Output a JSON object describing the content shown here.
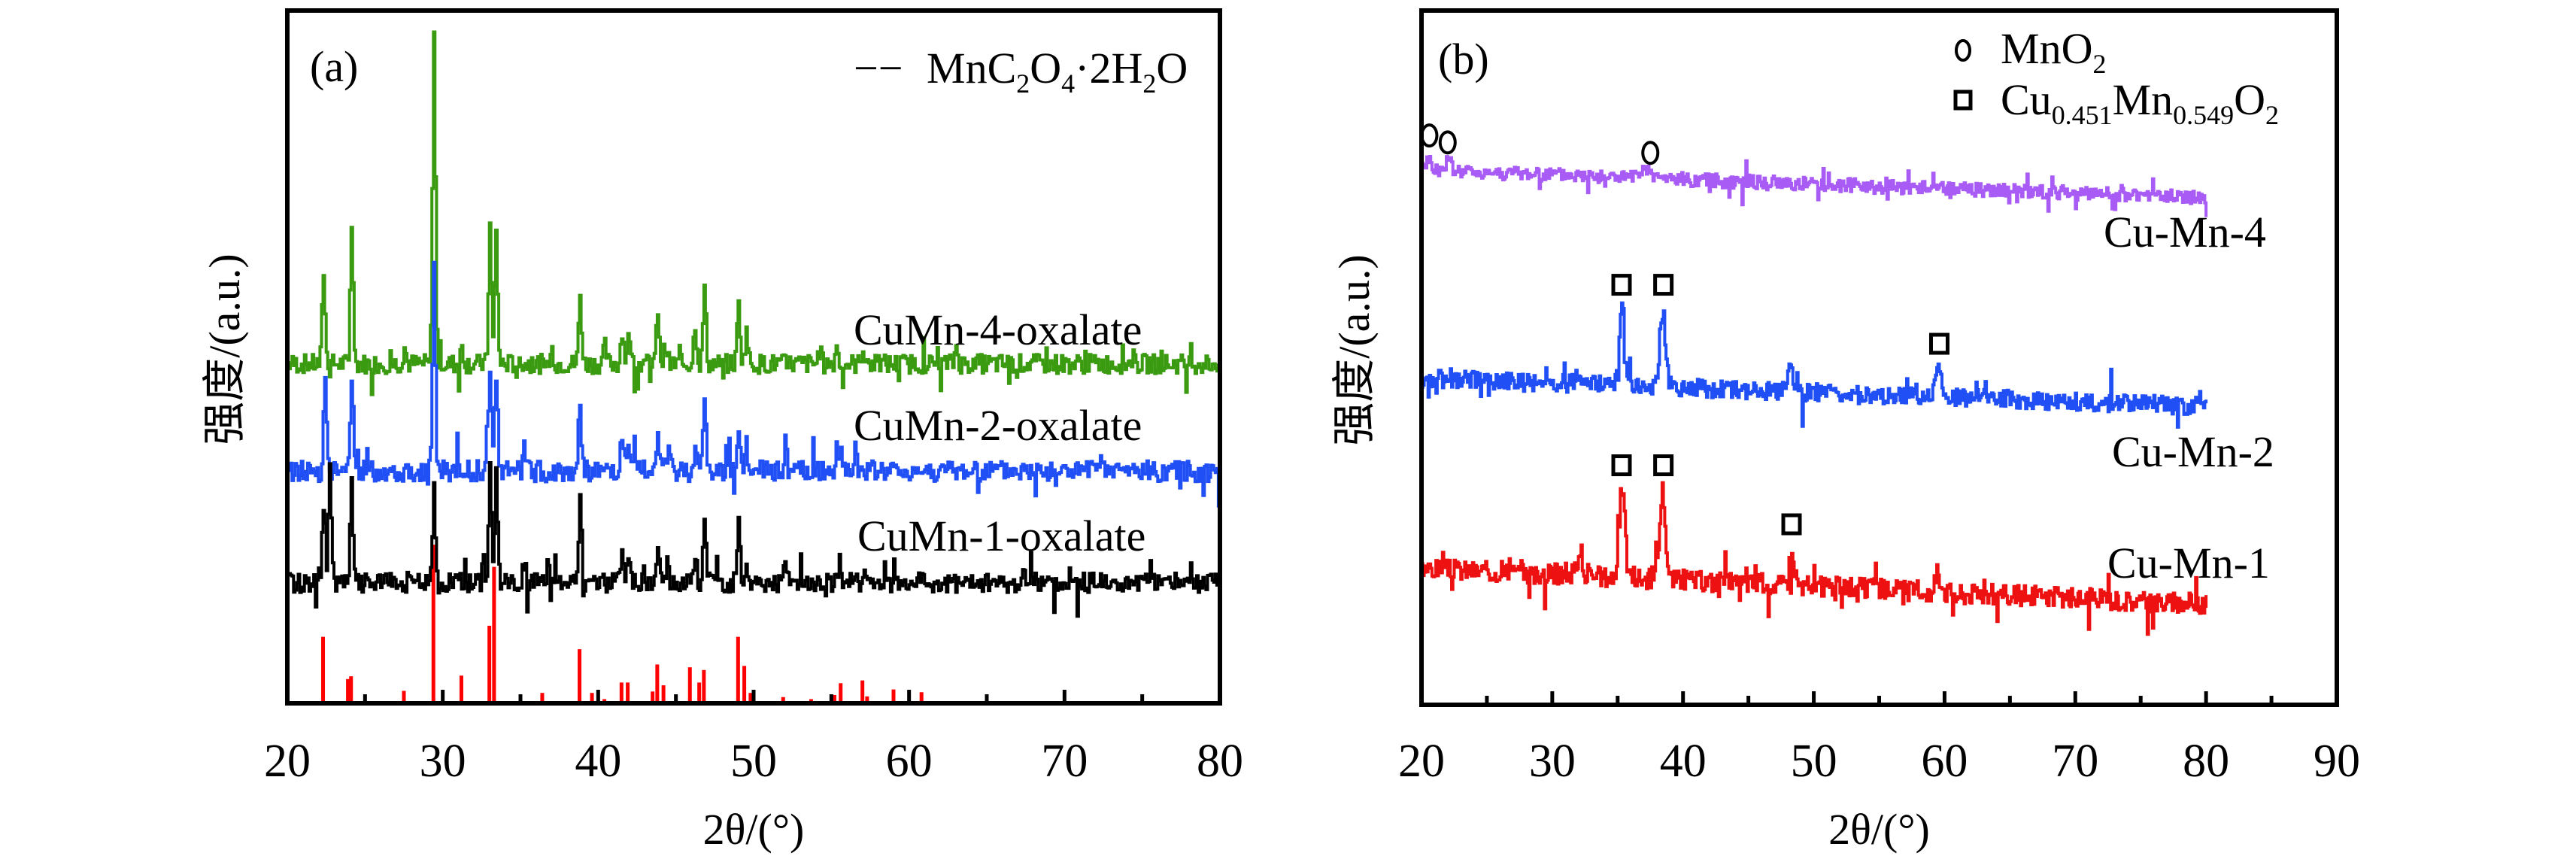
{
  "chart_data": [
    {
      "panel": "(a)",
      "type": "line",
      "xlabel": "2θ/(°)",
      "ylabel": "强度/(a.u.)",
      "xlim": [
        20,
        80
      ],
      "ylim": [
        0,
        100
      ],
      "xticks": [
        20,
        30,
        40,
        50,
        60,
        70,
        80
      ],
      "legend": {
        "marker": "−−",
        "label": "MnC2O4·2H2O",
        "label_parts": [
          [
            "MnC",
            ""
          ],
          [
            "2",
            "sub"
          ],
          [
            "O",
            ""
          ],
          [
            "4",
            "sub"
          ],
          [
            "·2H",
            ""
          ],
          [
            "2",
            "sub"
          ],
          [
            "O",
            ""
          ]
        ],
        "color": "#ff0000",
        "placement": "top-right"
      },
      "series": [
        {
          "name": "CuMn-4-oxalate",
          "color": "#3a9a10",
          "baseline": 49,
          "noise": 1.4,
          "seed": 7,
          "peaks": [
            [
              22.3,
              13.5
            ],
            [
              24.1,
              20
            ],
            [
              27.5,
              2.5
            ],
            [
              29.4,
              48
            ],
            [
              31.2,
              2.5
            ],
            [
              33.0,
              20
            ],
            [
              33.4,
              19
            ],
            [
              37.0,
              2
            ],
            [
              38.8,
              10
            ],
            [
              40.4,
              2.5
            ],
            [
              41.5,
              5
            ],
            [
              41.9,
              4
            ],
            [
              43.8,
              8
            ],
            [
              44.3,
              3
            ],
            [
              46.2,
              6
            ],
            [
              46.8,
              11
            ],
            [
              49.0,
              9
            ],
            [
              49.5,
              5
            ],
            [
              54.2,
              2
            ],
            [
              55.3,
              2.5
            ],
            [
              57.0,
              2.5
            ],
            [
              63.0,
              2.5
            ]
          ]
        },
        {
          "name": "CuMn-2-oxalate",
          "color": "#1f4ff5",
          "baseline": 33.5,
          "noise": 1.5,
          "seed": 13,
          "peaks": [
            [
              22.4,
              15
            ],
            [
              24.1,
              14.5
            ],
            [
              29.4,
              30
            ],
            [
              33.0,
              15
            ],
            [
              33.4,
              14
            ],
            [
              35.2,
              3.5
            ],
            [
              38.8,
              10
            ],
            [
              41.5,
              5
            ],
            [
              41.9,
              4
            ],
            [
              43.8,
              7
            ],
            [
              44.5,
              3
            ],
            [
              46.2,
              4
            ],
            [
              46.8,
              11
            ],
            [
              49.0,
              5
            ],
            [
              49.5,
              4
            ],
            [
              52.0,
              4
            ],
            [
              55.6,
              3
            ],
            [
              56.5,
              3
            ]
          ]
        },
        {
          "name": "CuMn-1-oxalate",
          "color": "#000000",
          "baseline": 17.4,
          "noise": 1.4,
          "seed": 29,
          "peaks": [
            [
              22.3,
              11
            ],
            [
              22.7,
              17
            ],
            [
              24.1,
              14
            ],
            [
              29.4,
              14
            ],
            [
              30.8,
              2.5
            ],
            [
              33.0,
              17
            ],
            [
              33.4,
              14
            ],
            [
              35.2,
              3
            ],
            [
              36.7,
              2
            ],
            [
              38.8,
              12
            ],
            [
              41.5,
              6
            ],
            [
              41.9,
              4
            ],
            [
              43.8,
              6
            ],
            [
              44.4,
              3
            ],
            [
              46.2,
              4
            ],
            [
              46.8,
              10
            ],
            [
              49.0,
              10
            ],
            [
              49.5,
              3
            ],
            [
              52.0,
              3
            ],
            [
              57.0,
              2
            ],
            [
              60.8,
              2
            ],
            [
              67.3,
              2.5
            ]
          ]
        }
      ],
      "reference_sticks": {
        "name": "MnC2O4·2H2O",
        "color": "#ff0000",
        "x": [
          22.3,
          23.9,
          24.1,
          27.5,
          29.4,
          31.2,
          33.0,
          33.3,
          36.4,
          38.8,
          39.6,
          40.4,
          41.5,
          41.9,
          43.5,
          43.8,
          44.2,
          45.9,
          46.5,
          46.8,
          49.0,
          49.4,
          49.8,
          51.9,
          53.7,
          55.2,
          55.6,
          57.0,
          57.3,
          59.0,
          60.8
        ],
        "y": [
          9.6,
          3.5,
          3.9,
          1.8,
          22.9,
          4.0,
          11.2,
          19.7,
          1.5,
          7.8,
          1.5,
          0.6,
          3.0,
          3.0,
          1.7,
          5.6,
          2.6,
          5.2,
          3.0,
          4.8,
          9.6,
          5.4,
          1.5,
          0.9,
          0.6,
          1.2,
          2.9,
          3.3,
          1.0,
          2.0,
          1.6
        ]
      }
    },
    {
      "panel": "(b)",
      "type": "line",
      "xlabel": "2θ/(°)",
      "ylabel": "强度/(a.u.)",
      "xlim": [
        20,
        90
      ],
      "ylim": [
        0,
        100
      ],
      "xticks": [
        20,
        30,
        40,
        50,
        60,
        70,
        80,
        90
      ],
      "legend": {
        "placement": "top-right",
        "entries": [
          {
            "symbol": "circle",
            "label": "MnO2",
            "label_parts": [
              [
                "MnO",
                ""
              ],
              [
                "2",
                "sub"
              ]
            ]
          },
          {
            "symbol": "square",
            "label": "Cu0.451Mn0.549O2",
            "label_parts": [
              [
                "Cu",
                ""
              ],
              [
                "0.451",
                "sub"
              ],
              [
                "Mn",
                ""
              ],
              [
                "0.549",
                "sub"
              ],
              [
                "O",
                ""
              ],
              [
                "2",
                "sub"
              ]
            ]
          }
        ]
      },
      "series": [
        {
          "name": "Cu-Mn-4",
          "color": "#a95cf5",
          "baseline_start": 77,
          "baseline_end": 73,
          "noise": 1.0,
          "seed": 41,
          "peaks": [
            [
              20.5,
              1.5
            ],
            [
              22.0,
              1.5
            ],
            [
              37.3,
              1.2
            ]
          ]
        },
        {
          "name": "Cu-Mn-2",
          "color": "#1f4ff5",
          "baseline_start": 47,
          "baseline_end": 43,
          "noise": 1.3,
          "seed": 53,
          "peaks": [
            [
              32.0,
              2
            ],
            [
              35.3,
              11
            ],
            [
              38.4,
              11
            ],
            [
              48.2,
              3
            ],
            [
              59.5,
              4
            ]
          ]
        },
        {
          "name": "Cu-Mn-1",
          "color": "#ee1111",
          "baseline_start": 19.7,
          "baseline_end": 14.5,
          "noise": 1.5,
          "seed": 67,
          "peaks": [
            [
              32.0,
              2.5
            ],
            [
              35.3,
              13
            ],
            [
              38.4,
              13
            ],
            [
              48.3,
              4
            ],
            [
              59.5,
              3
            ]
          ]
        }
      ],
      "markers": [
        {
          "symbol": "circle",
          "x": 20.6,
          "y": 82
        },
        {
          "symbol": "circle",
          "x": 22.0,
          "y": 81
        },
        {
          "symbol": "circle",
          "x": 37.5,
          "y": 79.5
        },
        {
          "symbol": "square",
          "x": 35.3,
          "y": 60.5
        },
        {
          "symbol": "square",
          "x": 38.5,
          "y": 60.5
        },
        {
          "symbol": "square",
          "x": 59.6,
          "y": 52
        },
        {
          "symbol": "square",
          "x": 35.3,
          "y": 34.5
        },
        {
          "symbol": "square",
          "x": 38.5,
          "y": 34.5
        },
        {
          "symbol": "square",
          "x": 48.3,
          "y": 26
        }
      ]
    }
  ]
}
